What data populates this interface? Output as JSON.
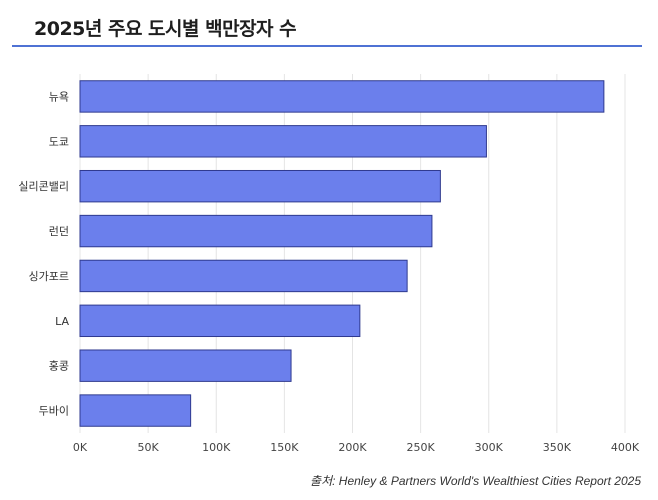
{
  "title": "2025년 주요 도시별 백만장자 수",
  "source": "출처: Henley & Partners World's Wealthiest Cities Report 2025",
  "colors": {
    "bar_fill": "#6b7fec",
    "bar_stroke": "#2f3a8f",
    "title_rule": "#4f72d4",
    "grid": "#e4e4e4"
  },
  "chart_data": {
    "type": "bar",
    "orientation": "horizontal",
    "categories": [
      "뉴욕",
      "도쿄",
      "실리콘밸리",
      "런던",
      "싱가포르",
      "LA",
      "홍콩",
      "두바이"
    ],
    "values": [
      384500,
      298300,
      264500,
      258300,
      240100,
      205400,
      154900,
      81200
    ],
    "xlim": [
      0,
      400000
    ],
    "xticks": [
      {
        "value": 0,
        "label": "0K"
      },
      {
        "value": 50000,
        "label": "50K"
      },
      {
        "value": 100000,
        "label": "100K"
      },
      {
        "value": 150000,
        "label": "150K"
      },
      {
        "value": 200000,
        "label": "200K"
      },
      {
        "value": 250000,
        "label": "250K"
      },
      {
        "value": 300000,
        "label": "300K"
      },
      {
        "value": 350000,
        "label": "350K"
      },
      {
        "value": 400000,
        "label": "400K"
      }
    ],
    "grid": true,
    "legend": "none"
  }
}
